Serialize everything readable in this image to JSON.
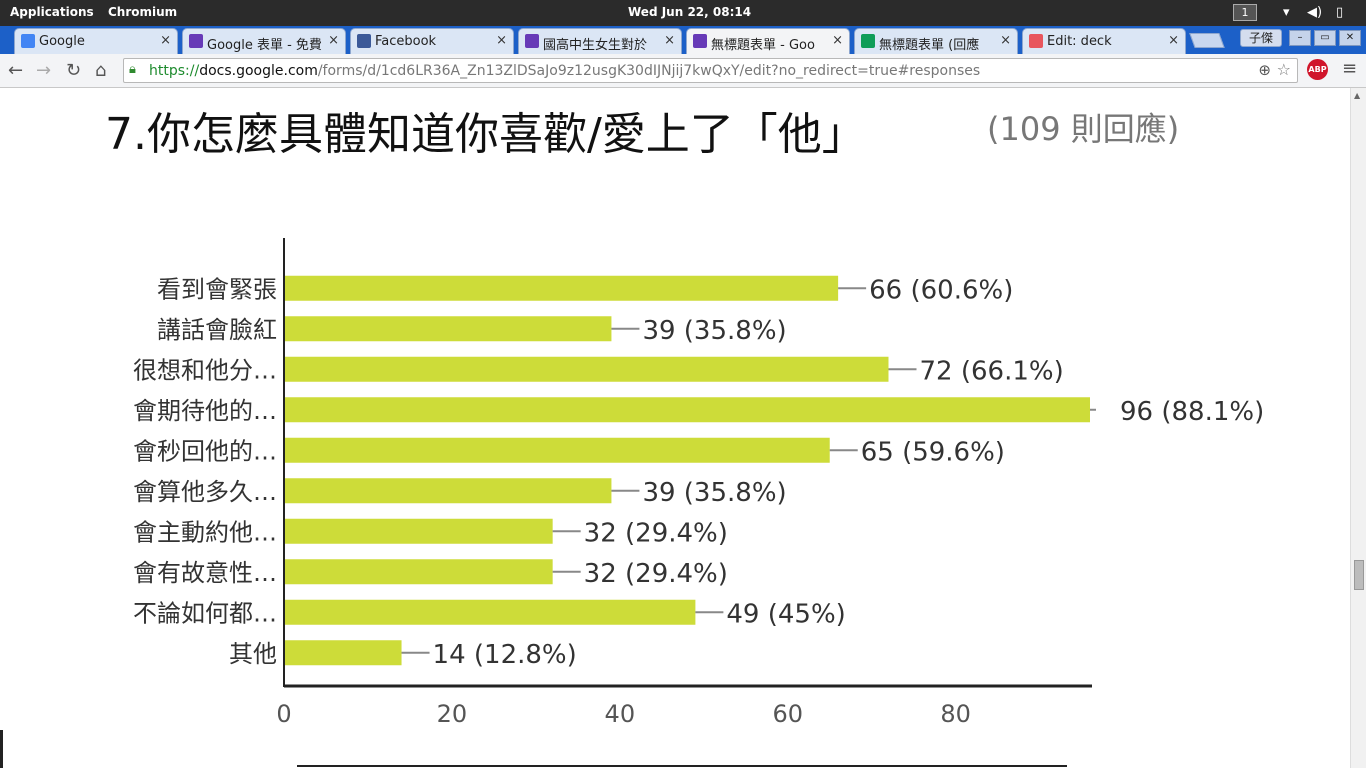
{
  "system_bar": {
    "applications": "Applications",
    "app_name": "Chromium",
    "clock": "Wed Jun 22, 08:14",
    "workspace": "1"
  },
  "tabs": [
    {
      "label": "Google",
      "icon": "google-icon",
      "color": "#4285f4",
      "active": false
    },
    {
      "label": "Google 表單 - 免費",
      "icon": "forms-icon",
      "color": "#673ab7",
      "active": false
    },
    {
      "label": "Facebook",
      "icon": "facebook-icon",
      "color": "#3b5998",
      "active": false
    },
    {
      "label": "國高中生女生對於",
      "icon": "forms-icon",
      "color": "#673ab7",
      "active": false
    },
    {
      "label": "無標題表單 - Goo",
      "icon": "forms-icon",
      "color": "#673ab7",
      "active": true
    },
    {
      "label": "無標題表單 (回應",
      "icon": "sheets-icon",
      "color": "#0f9d58",
      "active": false
    },
    {
      "label": "Edit: deck",
      "icon": "slides-icon",
      "color": "#e8555d",
      "active": false
    }
  ],
  "profile_name": "子傑",
  "toolbar": {
    "url_scheme": "https://",
    "url_host": "docs.google.com",
    "url_path": "/forms/d/1cd6LR36A_Zn13ZlDSaJo9z12usgK30dIJNjij7kwQxY/edit?no_redirect=true#responses",
    "abp_label": "ABP"
  },
  "question": {
    "title": "7.你怎麼具體知道你喜歡/愛上了「他」",
    "response_count": "(109 則回應)"
  },
  "accent": "#cddc39",
  "chart_data": {
    "type": "bar",
    "orientation": "horizontal",
    "categories": [
      "看到會緊張",
      "講話會臉紅",
      "很想和他分…",
      "會期待他的…",
      "會秒回他的…",
      "會算他多久…",
      "會主動約他…",
      "會有故意性…",
      "不論如何都…",
      "其他"
    ],
    "values": [
      66,
      39,
      72,
      96,
      65,
      39,
      32,
      32,
      49,
      14
    ],
    "value_labels": [
      "66 (60.6%)",
      "39 (35.8%)",
      "72 (66.1%)",
      "96 (88.1%)",
      "65 (59.6%)",
      "39 (35.8%)",
      "32 (29.4%)",
      "32 (29.4%)",
      "49 (45%)",
      "14 (12.8%)"
    ],
    "x_ticks": [
      "0",
      "20",
      "40",
      "60",
      "80"
    ],
    "xlim": [
      0,
      96
    ],
    "bar_color": "#cddc39",
    "grid": false
  }
}
